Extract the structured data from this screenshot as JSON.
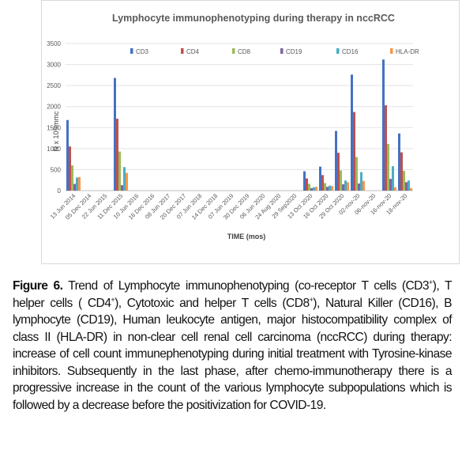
{
  "chart_data": {
    "type": "bar",
    "title": "Lymphocyte immunophenotyping during therapy in nccRCC",
    "xlabel": "TIME (mos)",
    "ylabel": "N x 10³/mmc",
    "ylim": [
      0,
      3500
    ],
    "yticks": [
      0,
      500,
      1000,
      1500,
      2000,
      2500,
      3000,
      3500
    ],
    "grid": true,
    "legend_position": "top",
    "categories": [
      "13 Jun 2014",
      "05 Dec 2014",
      "22 Jun 2015",
      "11 Dec 2015",
      "10 Jun 2016",
      "16 Dec 2016",
      "08 Jun 2017",
      "20 Dec 2017",
      "07 Jun 2018",
      "14 Dec 2018",
      "07 Jun 2019",
      "30 Dec 2019",
      "06 Jun 2020",
      "24 Aug 2020",
      "29 Sep2020",
      "13 Oct 2020",
      "16 Oct 2020",
      "29 Oct 2020",
      "02-nov-20",
      "06-nov-20",
      "16-nov-20",
      "18-nov-20"
    ],
    "series": [
      {
        "name": "CD3",
        "color": "#4472c4",
        "values": [
          1680,
          0,
          0,
          2680,
          0,
          0,
          0,
          0,
          0,
          0,
          0,
          0,
          0,
          0,
          0,
          460,
          570,
          1420,
          2760,
          0,
          3120,
          1360
        ]
      },
      {
        "name": "CD4",
        "color": "#c0504d",
        "values": [
          1050,
          0,
          0,
          1710,
          0,
          0,
          0,
          0,
          0,
          0,
          0,
          0,
          0,
          0,
          0,
          290,
          370,
          900,
          1870,
          0,
          2030,
          910
        ]
      },
      {
        "name": "CD8",
        "color": "#9bbb59",
        "values": [
          600,
          0,
          0,
          930,
          0,
          0,
          0,
          0,
          0,
          0,
          0,
          0,
          0,
          0,
          0,
          160,
          180,
          480,
          800,
          0,
          1110,
          470
        ]
      },
      {
        "name": "CD19",
        "color": "#8064a2",
        "values": [
          160,
          0,
          0,
          130,
          0,
          0,
          0,
          0,
          0,
          0,
          0,
          0,
          0,
          0,
          0,
          60,
          90,
          150,
          170,
          0,
          280,
          200
        ]
      },
      {
        "name": "CD16",
        "color": "#4bacc6",
        "values": [
          310,
          0,
          0,
          560,
          0,
          0,
          0,
          0,
          0,
          0,
          0,
          0,
          0,
          0,
          0,
          80,
          120,
          240,
          440,
          0,
          580,
          240
        ]
      },
      {
        "name": "HLA-DR",
        "color": "#f79646",
        "values": [
          320,
          0,
          0,
          420,
          0,
          0,
          0,
          0,
          0,
          0,
          0,
          0,
          0,
          0,
          0,
          90,
          110,
          200,
          230,
          0,
          80,
          60
        ]
      }
    ]
  },
  "caption": {
    "label": "Figure 6.",
    "p1": " Trend of Lymphocyte immunophenotyping (co-receptor T cells (CD3",
    "p2": "), T helper cells ( CD4",
    "p3": "), Cytotoxic and helper T cells (CD8",
    "p4": "), Natural Killer (CD16), B lymphocyte (CD19), Human leukocyte antigen, major histocompatibility complex of class II (HLA-DR) in non-clear cell renal cell carcinoma (nccRCC) during therapy: increase of cell count immunephenotyping during initial treatment with Tyrosine-kinase inhibitors. Subsequently in the last phase, after chemo-immunotherapy there is a progressive increase in the count of the various lymphocyte subpopulations which is followed by a decrease before the positivization for COVID-19.",
    "sup": "+"
  }
}
